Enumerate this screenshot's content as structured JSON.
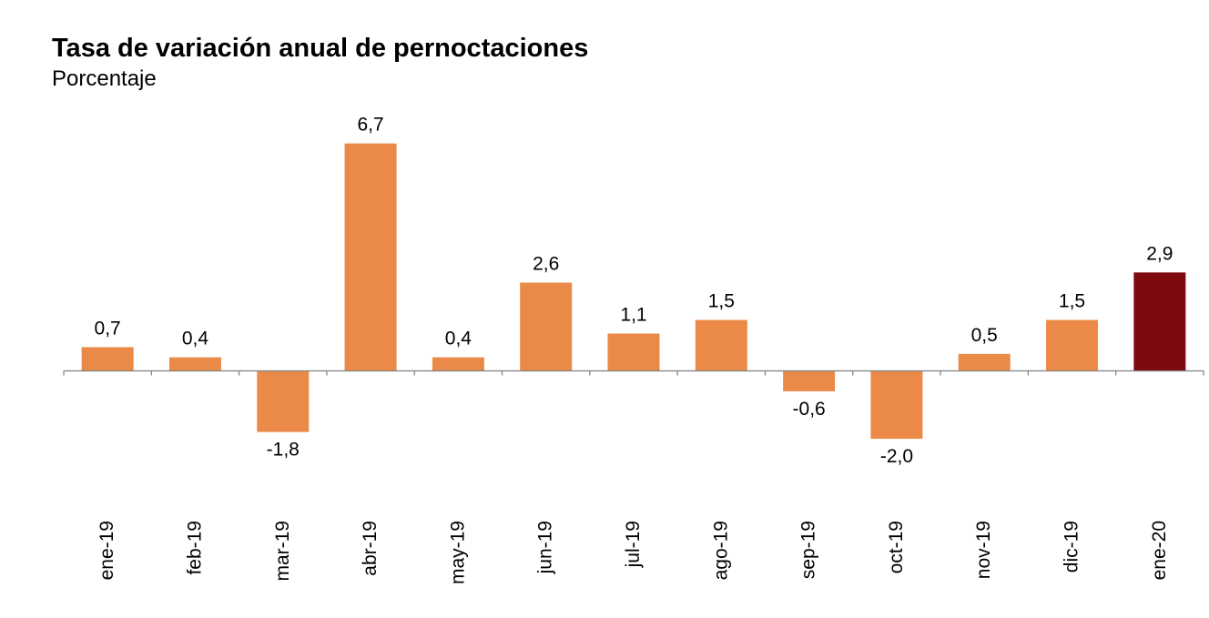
{
  "chart_data": {
    "type": "bar",
    "title": "Tasa de variación anual de pernoctaciones",
    "subtitle": "Porcentaje",
    "categories": [
      "ene-19",
      "feb-19",
      "mar-19",
      "abr-19",
      "may-19",
      "jun-19",
      "jul-19",
      "ago-19",
      "sep-19",
      "oct-19",
      "nov-19",
      "dic-19",
      "ene-20"
    ],
    "values": [
      0.7,
      0.4,
      -1.8,
      6.7,
      0.4,
      2.6,
      1.1,
      1.5,
      -0.6,
      -2.0,
      0.5,
      1.5,
      2.9
    ],
    "value_labels": [
      "0,7",
      "0,4",
      "-1,8",
      "6,7",
      "0,4",
      "2,6",
      "1,1",
      "1,5",
      "-0,6",
      "-2,0",
      "0,5",
      "1,5",
      "2,9"
    ],
    "bar_color": "#EB8A48",
    "highlight_color": "#7D0A0E",
    "highlight_category": "ene-20",
    "xlabel": "",
    "ylabel": "",
    "ylim": [
      -2.0,
      6.7
    ],
    "grid": false,
    "legend": "none"
  }
}
